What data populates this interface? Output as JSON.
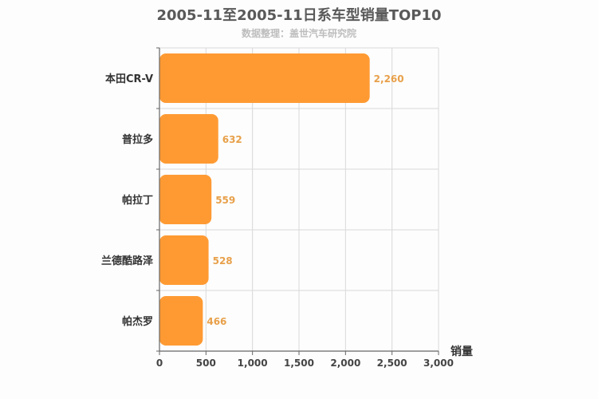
{
  "chart_data": {
    "type": "bar",
    "orientation": "horizontal",
    "title": "2005-11至2005-11日系车型销量TOP10",
    "subtitle": "数据整理：盖世汽车研究院",
    "xlabel": "销量",
    "categories": [
      "本田CR-V",
      "普拉多",
      "帕拉丁",
      "兰德酷路泽",
      "帕杰罗"
    ],
    "values": [
      2260,
      632,
      559,
      528,
      466
    ],
    "value_labels": [
      "2,260",
      "632",
      "559",
      "528",
      "466"
    ],
    "xlim": [
      0,
      3000
    ],
    "xticks": [
      0,
      500,
      1000,
      1500,
      2000,
      2500,
      3000
    ],
    "xtick_labels": [
      "0",
      "500",
      "1,000",
      "1,500",
      "2,000",
      "2,500",
      "3,000"
    ],
    "grid": true,
    "bar_color": "#ff9a33",
    "value_label_color": "#e8a04a"
  }
}
